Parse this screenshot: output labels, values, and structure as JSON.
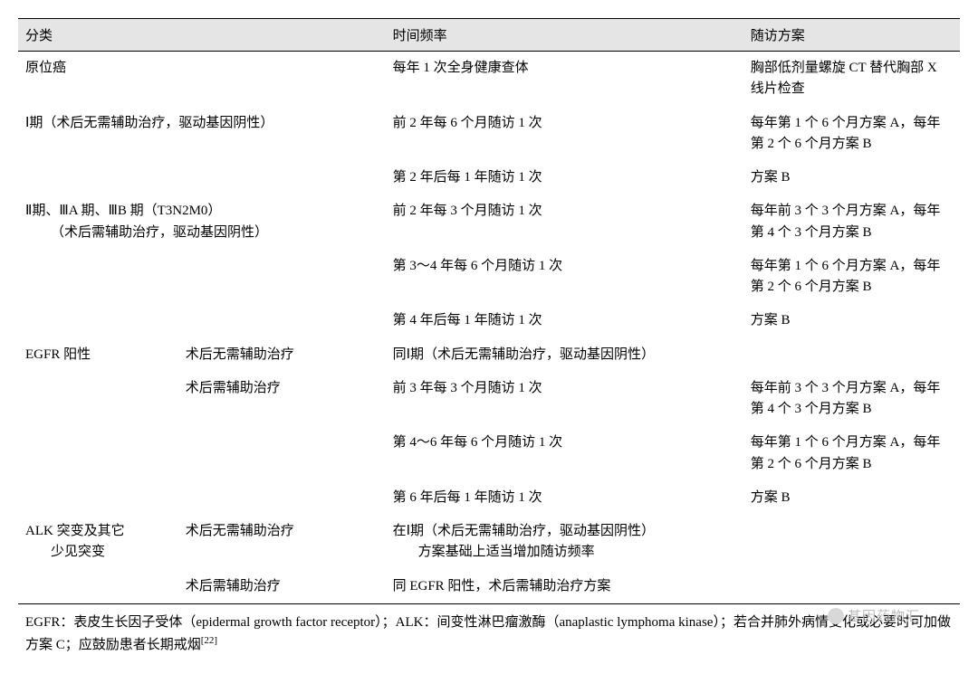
{
  "columns": {
    "category": "分类",
    "frequency": "时间频率",
    "plan": "随访方案"
  },
  "col_widths": {
    "c1": "17%",
    "c2": "22%",
    "c3": "38%",
    "c4": "23%"
  },
  "rows": [
    {
      "cat1": "原位癌",
      "cat2": "",
      "freq": "每年 1 次全身健康查体",
      "plan": "胸部低剂量螺旋 CT 替代胸部 X 线片检查"
    },
    {
      "cat1": "Ⅰ期（术后无需辅助治疗，驱动基因阴性）",
      "cat_span": true,
      "freq": "前 2 年每 6 个月随访 1 次",
      "plan": "每年第 1 个 6 个月方案 A，每年第 2 个 6 个月方案 B"
    },
    {
      "cat1": "",
      "cat2": "",
      "freq": "第 2 年后每 1 年随访 1 次",
      "plan": "方案 B"
    },
    {
      "cat1": "Ⅱ期、ⅢA 期、ⅢB 期（T3N2M0）",
      "cat1_line2": "（术后需辅助治疗，驱动基因阴性）",
      "cat_span": true,
      "freq": "前 2 年每 3 个月随访 1 次",
      "plan": "每年前 3 个 3 个月方案 A，每年第 4 个 3 个月方案 B"
    },
    {
      "cat1": "",
      "cat2": "",
      "freq": "第 3～4 年每 6 个月随访 1 次",
      "plan": "每年第 1 个 6 个月方案 A，每年第 2 个 6 个月方案 B"
    },
    {
      "cat1": "",
      "cat2": "",
      "freq": "第 4 年后每 1 年随访 1 次",
      "plan": "方案 B"
    },
    {
      "cat1": "EGFR 阳性",
      "cat2": "术后无需辅助治疗",
      "freq": "同Ⅰ期（术后无需辅助治疗，驱动基因阴性）",
      "plan": ""
    },
    {
      "cat1": "",
      "cat2": "术后需辅助治疗",
      "freq": "前 3 年每 3 个月随访 1 次",
      "plan": "每年前 3 个 3 个月方案 A，每年第 4 个 3 个月方案 B"
    },
    {
      "cat1": "",
      "cat2": "",
      "freq": "第 4～6 年每 6 个月随访 1 次",
      "plan": "每年第 1 个 6 个月方案 A，每年第 2 个 6 个月方案 B"
    },
    {
      "cat1": "",
      "cat2": "",
      "freq": "第 6 年后每 1 年随访 1 次",
      "plan": "方案 B"
    },
    {
      "cat1": "ALK 突变及其它",
      "cat1_line2_plain": "少见突变",
      "cat2": "术后无需辅助治疗",
      "freq": "在Ⅰ期（术后无需辅助治疗，驱动基因阴性）",
      "freq_line2": "方案基础上适当增加随访频率",
      "plan": ""
    },
    {
      "cat1": "",
      "cat2": "术后需辅助治疗",
      "freq": "同 EGFR 阳性，术后需辅助治疗方案",
      "plan": ""
    }
  ],
  "footnote": {
    "text_a": "EGFR：表皮生长因子受体（epidermal growth factor receptor）；ALK：间变性淋巴瘤激酶（anaplastic lymphoma kinase）；若合并肺外病情变化或必要时可加做方案 C；应鼓励患者长期戒烟",
    "ref": "[22]"
  },
  "watermark": "基因药物汇",
  "colors": {
    "header_bg": "#e5e5e5",
    "border": "#000000",
    "text": "#000000",
    "watermark": "#bdbdbd"
  }
}
